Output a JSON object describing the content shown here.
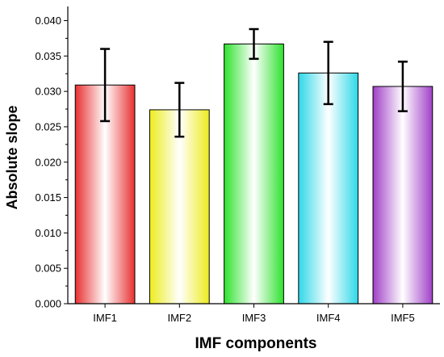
{
  "chart_data": {
    "type": "bar",
    "categories": [
      "IMF1",
      "IMF2",
      "IMF3",
      "IMF4",
      "IMF5"
    ],
    "values": [
      0.0309,
      0.0274,
      0.0367,
      0.0326,
      0.0307
    ],
    "error": [
      0.0051,
      0.0038,
      0.0021,
      0.0044,
      0.0035
    ],
    "colors": [
      "#e83030",
      "#ecec1e",
      "#2ee22e",
      "#2ed8e8",
      "#a040c8"
    ],
    "xlabel": "IMF components",
    "ylabel": "Absolute slope",
    "ylim": [
      0,
      0.042
    ],
    "yticks": [
      "0.000",
      "0.005",
      "0.010",
      "0.015",
      "0.020",
      "0.025",
      "0.030",
      "0.035",
      "0.040"
    ],
    "grid": false,
    "legend": "none"
  }
}
